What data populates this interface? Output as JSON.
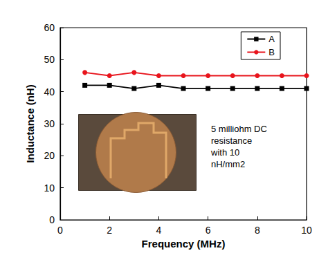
{
  "chart_data": {
    "type": "line",
    "x_label": "Frequency (MHz)",
    "y_label": "Inductance (nH)",
    "x": [
      1,
      2,
      3,
      4,
      5,
      6,
      7,
      8,
      9,
      10
    ],
    "series": [
      {
        "name": "A",
        "color": "#000000",
        "marker": "square",
        "values": [
          42,
          42,
          41,
          42,
          41,
          41,
          41,
          41,
          41,
          41
        ]
      },
      {
        "name": "B",
        "color": "#e8141c",
        "marker": "circle",
        "values": [
          46,
          45,
          46,
          45,
          45,
          45,
          45,
          45,
          45,
          45
        ]
      }
    ],
    "xlim": [
      0,
      10
    ],
    "xticks": [
      0,
      2,
      4,
      6,
      8,
      10
    ],
    "ylim": [
      0,
      60
    ],
    "yticks": [
      0,
      10,
      20,
      30,
      40,
      50,
      60
    ],
    "grid": false,
    "legend": "upper right",
    "annotation": "5 milliohm DC\nresistance\nwith 10\nnH/mm2"
  }
}
